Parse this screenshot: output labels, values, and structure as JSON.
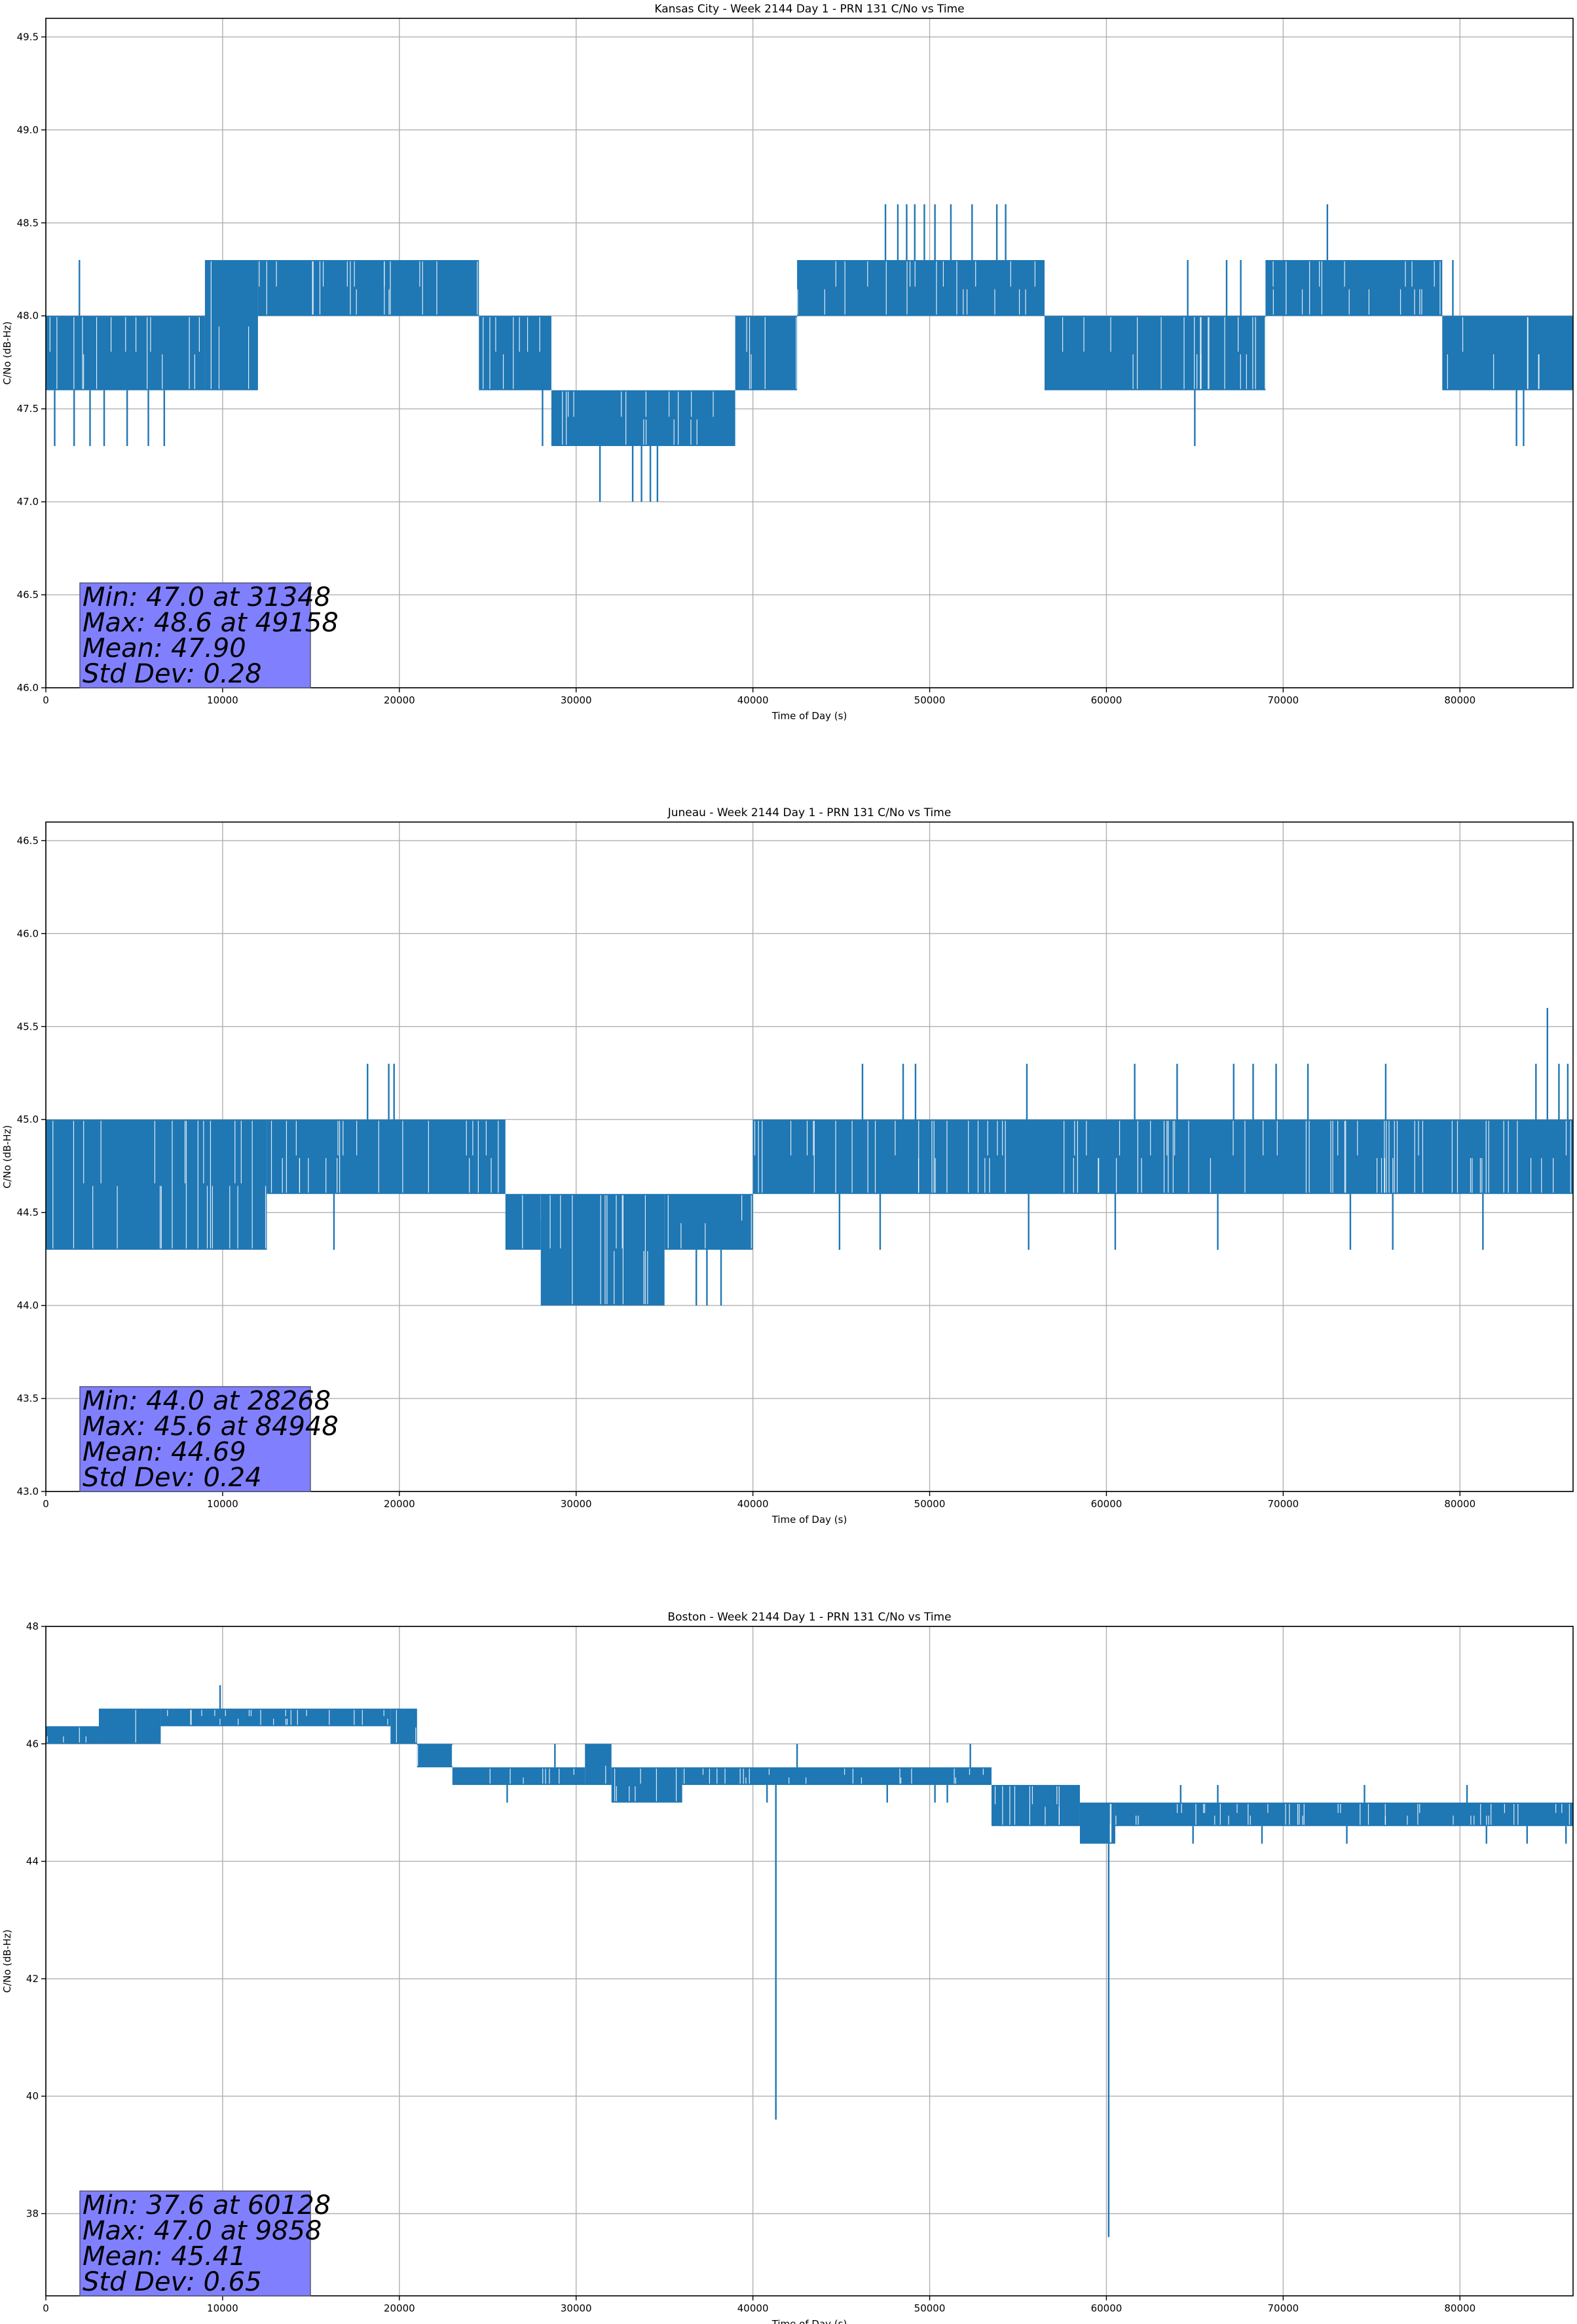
{
  "colors": {
    "series": "#1f77b4",
    "grid": "#b0b0b0",
    "statbox": "#8080ff",
    "statbox_edge": "#555577"
  },
  "chart_data": [
    {
      "type": "line",
      "title": "Kansas City - Week 2144 Day 1 - PRN 131 C/No vs Time",
      "xlabel": "Time of Day (s)",
      "ylabel": "C/No (dB-Hz)",
      "xlim": [
        0,
        86400
      ],
      "ylim": [
        46.0,
        49.6
      ],
      "grid": true,
      "xticks": [
        0,
        10000,
        20000,
        30000,
        40000,
        50000,
        60000,
        70000,
        80000
      ],
      "yticks": [
        46.0,
        46.5,
        47.0,
        47.5,
        48.0,
        48.5,
        49.0,
        49.5
      ],
      "ytick_decimals": 1,
      "stats": [
        "Min: 47.0 at 31348",
        "Max: 48.6 at 49158",
        "Mean: 47.90",
        "Std Dev: 0.28"
      ],
      "series": [
        {
          "segments": [
            {
              "x0": 0,
              "x1": 9000,
              "lo": 47.6,
              "hi": 48.0
            },
            {
              "x0": 9000,
              "x1": 12000,
              "lo": 47.6,
              "hi": 48.3
            },
            {
              "x0": 12000,
              "x1": 24500,
              "lo": 48.0,
              "hi": 48.3
            },
            {
              "x0": 24500,
              "x1": 28600,
              "lo": 47.6,
              "hi": 48.0
            },
            {
              "x0": 28600,
              "x1": 39000,
              "lo": 47.3,
              "hi": 47.6
            },
            {
              "x0": 39000,
              "x1": 42500,
              "lo": 47.6,
              "hi": 48.0
            },
            {
              "x0": 42500,
              "x1": 56500,
              "lo": 48.0,
              "hi": 48.3
            },
            {
              "x0": 56500,
              "x1": 69000,
              "lo": 47.6,
              "hi": 48.0
            },
            {
              "x0": 69000,
              "x1": 79000,
              "lo": 48.0,
              "hi": 48.3
            },
            {
              "x0": 79000,
              "x1": 86400,
              "lo": 47.6,
              "hi": 48.0
            }
          ],
          "spikes": [
            {
              "x": 500,
              "from": 47.6,
              "to": 47.3
            },
            {
              "x": 1600,
              "from": 47.6,
              "to": 47.3
            },
            {
              "x": 2500,
              "from": 47.6,
              "to": 47.3
            },
            {
              "x": 3300,
              "from": 47.6,
              "to": 47.3
            },
            {
              "x": 4600,
              "from": 47.6,
              "to": 47.3
            },
            {
              "x": 5800,
              "from": 47.6,
              "to": 47.3
            },
            {
              "x": 6700,
              "from": 47.6,
              "to": 47.3
            },
            {
              "x": 1900,
              "from": 48.0,
              "to": 48.3
            },
            {
              "x": 28100,
              "from": 48.0,
              "to": 47.3
            },
            {
              "x": 31348,
              "from": 47.3,
              "to": 47.0
            },
            {
              "x": 33200,
              "from": 47.3,
              "to": 47.0
            },
            {
              "x": 33700,
              "from": 47.3,
              "to": 47.0
            },
            {
              "x": 34200,
              "from": 47.3,
              "to": 47.0
            },
            {
              "x": 34600,
              "from": 47.3,
              "to": 47.0
            },
            {
              "x": 47500,
              "from": 48.3,
              "to": 48.6
            },
            {
              "x": 48200,
              "from": 48.3,
              "to": 48.6
            },
            {
              "x": 48700,
              "from": 48.3,
              "to": 48.6
            },
            {
              "x": 49158,
              "from": 48.3,
              "to": 48.6
            },
            {
              "x": 49700,
              "from": 48.3,
              "to": 48.6
            },
            {
              "x": 50300,
              "from": 48.3,
              "to": 48.6
            },
            {
              "x": 51200,
              "from": 48.3,
              "to": 48.6
            },
            {
              "x": 52400,
              "from": 48.3,
              "to": 48.6
            },
            {
              "x": 53800,
              "from": 48.3,
              "to": 48.6
            },
            {
              "x": 54300,
              "from": 48.3,
              "to": 48.6
            },
            {
              "x": 65000,
              "from": 47.6,
              "to": 47.3
            },
            {
              "x": 72500,
              "from": 48.3,
              "to": 48.6
            },
            {
              "x": 83200,
              "from": 47.6,
              "to": 47.3
            },
            {
              "x": 83600,
              "from": 47.6,
              "to": 47.3
            },
            {
              "x": 64600,
              "from": 48.0,
              "to": 48.3
            },
            {
              "x": 66800,
              "from": 48.0,
              "to": 48.3
            },
            {
              "x": 67600,
              "from": 48.0,
              "to": 48.3
            },
            {
              "x": 79600,
              "from": 48.0,
              "to": 48.3
            }
          ]
        }
      ]
    },
    {
      "type": "line",
      "title": "Juneau - Week 2144 Day 1 - PRN 131 C/No vs Time",
      "xlabel": "Time of Day (s)",
      "ylabel": "C/No (dB-Hz)",
      "xlim": [
        0,
        86400
      ],
      "ylim": [
        43.0,
        46.6
      ],
      "grid": true,
      "xticks": [
        0,
        10000,
        20000,
        30000,
        40000,
        50000,
        60000,
        70000,
        80000
      ],
      "yticks": [
        43.0,
        43.5,
        44.0,
        44.5,
        45.0,
        45.5,
        46.0,
        46.5
      ],
      "ytick_decimals": 1,
      "stats": [
        "Min: 44.0 at 28268",
        "Max: 45.6 at 84948",
        "Mean: 44.69",
        "Std Dev: 0.24"
      ],
      "series": [
        {
          "segments": [
            {
              "x0": 0,
              "x1": 12500,
              "lo": 44.3,
              "hi": 45.0
            },
            {
              "x0": 12500,
              "x1": 26000,
              "lo": 44.6,
              "hi": 45.0
            },
            {
              "x0": 26000,
              "x1": 28000,
              "lo": 44.3,
              "hi": 44.6
            },
            {
              "x0": 28000,
              "x1": 35000,
              "lo": 44.0,
              "hi": 44.6
            },
            {
              "x0": 35000,
              "x1": 40000,
              "lo": 44.3,
              "hi": 44.6
            },
            {
              "x0": 40000,
              "x1": 86400,
              "lo": 44.6,
              "hi": 45.0
            }
          ],
          "spikes": [
            {
              "x": 18200,
              "from": 45.0,
              "to": 45.3
            },
            {
              "x": 19400,
              "from": 45.0,
              "to": 45.3
            },
            {
              "x": 19700,
              "from": 45.0,
              "to": 45.3
            },
            {
              "x": 46200,
              "from": 45.0,
              "to": 45.3
            },
            {
              "x": 48500,
              "from": 45.0,
              "to": 45.3
            },
            {
              "x": 49200,
              "from": 45.0,
              "to": 45.3
            },
            {
              "x": 55500,
              "from": 45.0,
              "to": 45.3
            },
            {
              "x": 61600,
              "from": 45.0,
              "to": 45.3
            },
            {
              "x": 64000,
              "from": 45.0,
              "to": 45.3
            },
            {
              "x": 67200,
              "from": 45.0,
              "to": 45.3
            },
            {
              "x": 68300,
              "from": 45.0,
              "to": 45.3
            },
            {
              "x": 69600,
              "from": 45.0,
              "to": 45.3
            },
            {
              "x": 71400,
              "from": 45.0,
              "to": 45.3
            },
            {
              "x": 75800,
              "from": 45.0,
              "to": 45.3
            },
            {
              "x": 84300,
              "from": 45.0,
              "to": 45.3
            },
            {
              "x": 84948,
              "from": 45.0,
              "to": 45.6
            },
            {
              "x": 85600,
              "from": 45.0,
              "to": 45.3
            },
            {
              "x": 86100,
              "from": 45.0,
              "to": 45.3
            },
            {
              "x": 16300,
              "from": 44.6,
              "to": 44.3
            },
            {
              "x": 36800,
              "from": 44.3,
              "to": 44.0
            },
            {
              "x": 37400,
              "from": 44.3,
              "to": 44.0
            },
            {
              "x": 38200,
              "from": 44.3,
              "to": 44.0
            },
            {
              "x": 44900,
              "from": 44.6,
              "to": 44.3
            },
            {
              "x": 47200,
              "from": 44.6,
              "to": 44.3
            },
            {
              "x": 55600,
              "from": 44.6,
              "to": 44.3
            },
            {
              "x": 60500,
              "from": 44.6,
              "to": 44.3
            },
            {
              "x": 66300,
              "from": 44.6,
              "to": 44.3
            },
            {
              "x": 73800,
              "from": 44.6,
              "to": 44.3
            },
            {
              "x": 76200,
              "from": 44.6,
              "to": 44.3
            },
            {
              "x": 81300,
              "from": 44.6,
              "to": 44.3
            }
          ]
        }
      ]
    },
    {
      "type": "line",
      "title": "Boston - Week 2144 Day 1 - PRN 131 C/No vs Time",
      "xlabel": "Time of Day (s)",
      "ylabel": "C/No (dB-Hz)",
      "xlim": [
        0,
        86400
      ],
      "ylim": [
        36.6,
        48.0
      ],
      "grid": true,
      "xticks": [
        0,
        10000,
        20000,
        30000,
        40000,
        50000,
        60000,
        70000,
        80000
      ],
      "yticks": [
        38,
        40,
        42,
        44,
        46,
        48
      ],
      "ytick_decimals": 0,
      "stats": [
        "Min: 37.6 at 60128",
        "Max: 47.0 at 9858",
        "Mean: 45.41",
        "Std Dev: 0.65"
      ],
      "series": [
        {
          "segments": [
            {
              "x0": 0,
              "x1": 3000,
              "lo": 46.0,
              "hi": 46.3
            },
            {
              "x0": 3000,
              "x1": 6500,
              "lo": 46.0,
              "hi": 46.6
            },
            {
              "x0": 6500,
              "x1": 19500,
              "lo": 46.3,
              "hi": 46.6
            },
            {
              "x0": 19500,
              "x1": 21000,
              "lo": 46.0,
              "hi": 46.6
            },
            {
              "x0": 21000,
              "x1": 23000,
              "lo": 45.6,
              "hi": 46.0
            },
            {
              "x0": 23000,
              "x1": 30500,
              "lo": 45.3,
              "hi": 45.6
            },
            {
              "x0": 30500,
              "x1": 32000,
              "lo": 45.3,
              "hi": 46.0
            },
            {
              "x0": 32000,
              "x1": 36000,
              "lo": 45.0,
              "hi": 45.6
            },
            {
              "x0": 36000,
              "x1": 53500,
              "lo": 45.3,
              "hi": 45.6
            },
            {
              "x0": 53500,
              "x1": 58500,
              "lo": 44.6,
              "hi": 45.3
            },
            {
              "x0": 58500,
              "x1": 60500,
              "lo": 44.3,
              "hi": 45.0
            },
            {
              "x0": 60500,
              "x1": 86400,
              "lo": 44.6,
              "hi": 45.0
            }
          ],
          "spikes": [
            {
              "x": 9858,
              "from": 46.6,
              "to": 47.0
            },
            {
              "x": 41300,
              "from": 45.3,
              "to": 39.6
            },
            {
              "x": 60128,
              "from": 44.3,
              "to": 37.6
            },
            {
              "x": 28800,
              "from": 45.6,
              "to": 46.0
            },
            {
              "x": 42500,
              "from": 45.6,
              "to": 46.0
            },
            {
              "x": 52300,
              "from": 45.6,
              "to": 46.0
            },
            {
              "x": 40800,
              "from": 45.3,
              "to": 45.0
            },
            {
              "x": 47600,
              "from": 45.3,
              "to": 45.0
            },
            {
              "x": 50300,
              "from": 45.3,
              "to": 45.0
            },
            {
              "x": 51000,
              "from": 45.3,
              "to": 45.0
            },
            {
              "x": 26100,
              "from": 45.3,
              "to": 45.0
            },
            {
              "x": 64900,
              "from": 44.6,
              "to": 44.3
            },
            {
              "x": 68800,
              "from": 44.6,
              "to": 44.3
            },
            {
              "x": 73600,
              "from": 44.6,
              "to": 44.3
            },
            {
              "x": 81500,
              "from": 44.6,
              "to": 44.3
            },
            {
              "x": 83800,
              "from": 44.6,
              "to": 44.3
            },
            {
              "x": 86000,
              "from": 44.6,
              "to": 44.3
            },
            {
              "x": 64200,
              "from": 45.0,
              "to": 45.3
            },
            {
              "x": 66300,
              "from": 45.0,
              "to": 45.3
            },
            {
              "x": 74600,
              "from": 45.0,
              "to": 45.3
            },
            {
              "x": 80400,
              "from": 45.0,
              "to": 45.3
            }
          ]
        }
      ]
    }
  ]
}
